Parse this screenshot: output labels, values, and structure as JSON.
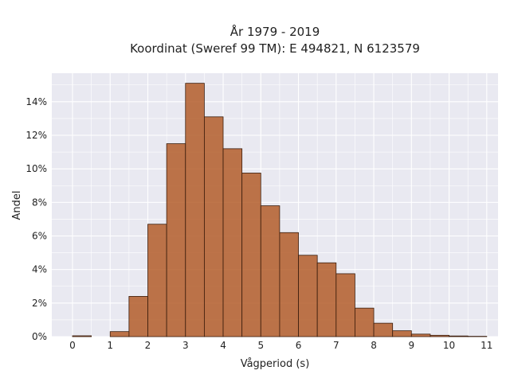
{
  "chart_data": {
    "type": "bar",
    "title_lines": [
      "År 1979 - 2019",
      "Koordinat (Sweref 99 TM): E 494821, N 6123579"
    ],
    "xlabel": "Vågperiod (s)",
    "ylabel": "Andel",
    "bin_width": 0.5,
    "bins_start": [
      0,
      0.5,
      1,
      1.5,
      2,
      2.5,
      3,
      3.5,
      4,
      4.5,
      5,
      5.5,
      6,
      6.5,
      7,
      7.5,
      8,
      8.5,
      9,
      9.5,
      10,
      10.5
    ],
    "values": [
      0.05,
      0.0,
      0.3,
      2.4,
      6.7,
      11.5,
      15.1,
      13.1,
      11.2,
      9.75,
      7.8,
      6.2,
      4.85,
      4.4,
      3.75,
      1.7,
      0.8,
      0.35,
      0.15,
      0.08,
      0.04,
      0.02
    ],
    "xlim": [
      -0.55,
      11.3
    ],
    "ylim": [
      0,
      15.7
    ],
    "xticks": [
      0,
      1,
      2,
      3,
      4,
      5,
      6,
      7,
      8,
      9,
      10,
      11
    ],
    "yticks": [
      0,
      2,
      4,
      6,
      8,
      10,
      12,
      14
    ],
    "ytick_suffix": "%",
    "grid": true,
    "colors": {
      "bar_fill": "#b35d2a",
      "bar_edge": "#3a1d0d",
      "plot_bg": "#e9e9f1",
      "grid": "#ffffff"
    }
  }
}
